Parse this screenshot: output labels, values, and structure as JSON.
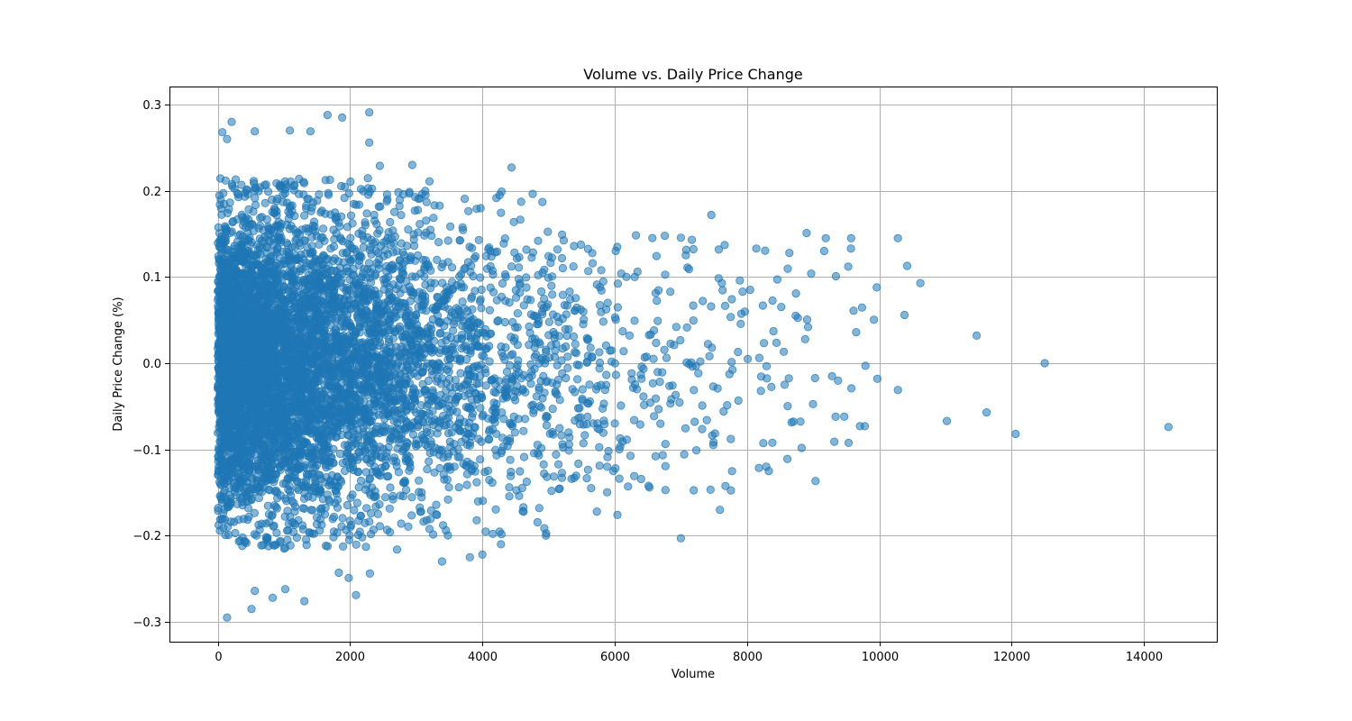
{
  "chart_data": {
    "type": "scatter",
    "title": "Volume vs. Daily Price Change",
    "xlabel": "Volume",
    "ylabel": "Daily Price Change (%)",
    "xlim": [
      -730,
      15100
    ],
    "ylim": [
      -0.323,
      0.321
    ],
    "xticks": [
      0,
      2000,
      4000,
      6000,
      8000,
      10000,
      12000,
      14000
    ],
    "xtick_labels": [
      "0",
      "2000",
      "4000",
      "6000",
      "8000",
      "10000",
      "12000",
      "14000"
    ],
    "yticks": [
      -0.3,
      -0.2,
      -0.1,
      0.0,
      0.1,
      0.2,
      0.3
    ],
    "ytick_labels": [
      "−0.3",
      "−0.2",
      "−0.1",
      "0.0",
      "0.1",
      "0.2",
      "0.3"
    ],
    "grid": true,
    "legend": "none",
    "marker_color": "#1f77b4",
    "marker_alpha": 0.55,
    "points": [
      [
        70,
        0.268
      ],
      [
        140,
        0.26
      ],
      [
        210,
        0.28
      ],
      [
        560,
        0.269
      ],
      [
        1090,
        0.27
      ],
      [
        1400,
        0.269
      ],
      [
        1660,
        0.288
      ],
      [
        1880,
        0.285
      ],
      [
        2290,
        0.291
      ],
      [
        2290,
        0.256
      ],
      [
        2450,
        0.229
      ],
      [
        2940,
        0.23
      ],
      [
        3200,
        0.211
      ],
      [
        4440,
        0.227
      ],
      [
        7460,
        0.172
      ],
      [
        8900,
        0.151
      ],
      [
        9190,
        0.145
      ],
      [
        9570,
        0.133
      ],
      [
        10280,
        0.145
      ],
      [
        10420,
        0.113
      ],
      [
        10620,
        0.093
      ],
      [
        9960,
        0.088
      ],
      [
        10380,
        0.056
      ],
      [
        9530,
        0.112
      ],
      [
        8970,
        0.104
      ],
      [
        11470,
        0.032
      ],
      [
        12500,
        0.0
      ],
      [
        11020,
        -0.067
      ],
      [
        11620,
        -0.057
      ],
      [
        12060,
        -0.082
      ],
      [
        14370,
        -0.074
      ],
      [
        10280,
        -0.031
      ],
      [
        9970,
        -0.018
      ],
      [
        9780,
        -0.073
      ],
      [
        9470,
        -0.062
      ],
      [
        9320,
        -0.091
      ],
      [
        8610,
        -0.111
      ],
      [
        8330,
        -0.125
      ],
      [
        8290,
        -0.12
      ],
      [
        7000,
        -0.203
      ],
      [
        7590,
        -0.17
      ],
      [
        6040,
        -0.176
      ],
      [
        5730,
        -0.172
      ],
      [
        4960,
        -0.2
      ],
      [
        4860,
        -0.168
      ],
      [
        4620,
        -0.167
      ],
      [
        4280,
        -0.21
      ],
      [
        4000,
        -0.222
      ],
      [
        3810,
        -0.225
      ],
      [
        3390,
        -0.23
      ],
      [
        2710,
        -0.216
      ],
      [
        2300,
        -0.244
      ],
      [
        2090,
        -0.269
      ],
      [
        1980,
        -0.249
      ],
      [
        1830,
        -0.243
      ],
      [
        1310,
        -0.276
      ],
      [
        1020,
        -0.262
      ],
      [
        830,
        -0.272
      ],
      [
        560,
        -0.264
      ],
      [
        510,
        -0.285
      ],
      [
        140,
        -0.295
      ],
      [
        9610,
        0.061
      ],
      [
        9650,
        0.036
      ],
      [
        9790,
        -0.003
      ],
      [
        8740,
        0.081
      ],
      [
        8640,
        0.128
      ],
      [
        8140,
        0.133
      ],
      [
        8240,
        0.067
      ],
      [
        7890,
        0.096
      ],
      [
        7620,
        0.093
      ]
    ]
  }
}
